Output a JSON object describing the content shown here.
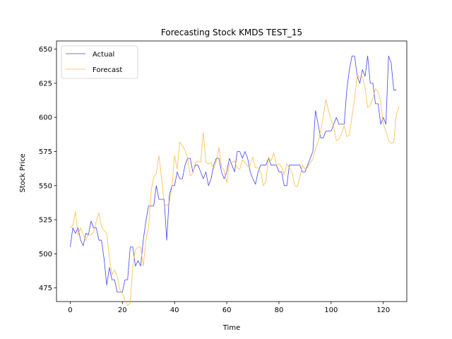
{
  "chart_data": {
    "type": "line",
    "title": "Forecasting Stock KMDS TEST_15",
    "xlabel": "Time",
    "ylabel": "Stock Price",
    "xlim": [
      -5.25,
      129.0
    ],
    "ylim": [
      465.0,
      656.0
    ],
    "xticks": [
      0,
      20,
      40,
      60,
      80,
      100,
      120
    ],
    "yticks": [
      475,
      500,
      525,
      550,
      575,
      600,
      625,
      650
    ],
    "grid": false,
    "legend_position": "top-left",
    "series": [
      {
        "name": "Actual",
        "color": "#4444ee",
        "values": [
          505,
          519,
          515,
          519,
          510,
          506,
          515,
          514,
          524,
          519,
          519,
          510,
          510,
          496,
          477,
          490,
          481,
          481,
          472,
          472,
          472,
          481,
          481,
          505,
          505,
          491,
          495,
          491,
          510,
          524,
          535,
          535,
          535,
          550,
          540,
          540,
          540,
          510,
          543,
          550,
          550,
          560,
          555,
          555,
          565,
          570,
          570,
          560,
          565,
          565,
          560,
          555,
          560,
          550,
          555,
          565,
          570,
          570,
          560,
          555,
          560,
          570,
          565,
          560,
          575,
          575,
          570,
          575,
          570,
          560,
          555,
          551,
          560,
          565,
          565,
          565,
          570,
          565,
          565,
          565,
          560,
          560,
          550,
          550,
          565,
          565,
          565,
          565,
          565,
          560,
          560,
          565,
          570,
          575,
          605,
          595,
          585,
          585,
          590,
          590,
          590,
          595,
          600,
          595,
          595,
          595,
          620,
          635,
          645,
          645,
          630,
          625,
          635,
          630,
          645,
          625,
          625,
          610,
          610,
          595,
          600,
          595,
          645,
          640,
          620,
          620
        ]
      },
      {
        "name": "Forecast",
        "color": "#ffbb44",
        "values": [
          519,
          521,
          531,
          514,
          519,
          514,
          510,
          514,
          514,
          516,
          524,
          530,
          520,
          517,
          515,
          497,
          485,
          488,
          484,
          474,
          471,
          466,
          462,
          464,
          491,
          503,
          505,
          505,
          491,
          510,
          519,
          546,
          556,
          559,
          572,
          556,
          537,
          535,
          538,
          549,
          572,
          562,
          582,
          579,
          576,
          570,
          557,
          559,
          567,
          568,
          567,
          589,
          567,
          566,
          567,
          562,
          568,
          578,
          564,
          561,
          552,
          566,
          567,
          568,
          563,
          562,
          569,
          567,
          564,
          565,
          571,
          563,
          563,
          560,
          550,
          553,
          571,
          568,
          574,
          565,
          566,
          564,
          558,
          566,
          563,
          560,
          550,
          549,
          556,
          565,
          562,
          563,
          567,
          569,
          577,
          582,
          590,
          601,
          613,
          605,
          598,
          593,
          583,
          584,
          588,
          594,
          586,
          587,
          601,
          613,
          631,
          629,
          630,
          622,
          607,
          609,
          614,
          621,
          619,
          612,
          595,
          590,
          583,
          581,
          582,
          602,
          608
        ]
      }
    ]
  }
}
